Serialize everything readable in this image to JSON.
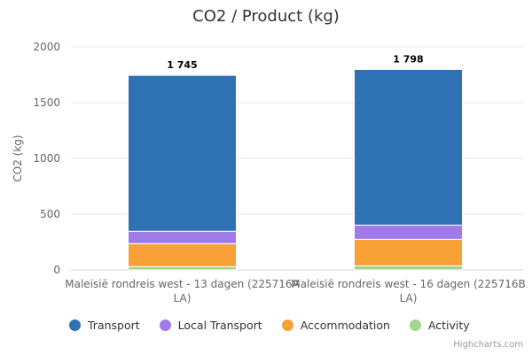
{
  "chart_data": {
    "type": "bar",
    "stacked": true,
    "title": "CO2 / Product (kg)",
    "ylabel": "CO2 (kg)",
    "xlabel": "",
    "ylim": [
      0,
      2000
    ],
    "yticks": [
      "0",
      "500",
      "1000",
      "1500",
      "2000"
    ],
    "categories": [
      "Maleisië rondreis west - 13 dagen (225716A LA)",
      "Maleisië rondreis west - 16 dagen (225716B LA)"
    ],
    "category_lines": [
      [
        "Maleisië rondreis west - 13 dagen (225716A",
        "LA)"
      ],
      [
        "Maleisië rondreis west - 16 dagen (225716B",
        "LA)"
      ]
    ],
    "totals": [
      1745,
      1798
    ],
    "total_labels": [
      "1 745",
      "1 798"
    ],
    "series": [
      {
        "name": "Activity",
        "color": "#a4d38c",
        "values": [
          30,
          37
        ]
      },
      {
        "name": "Accommodation",
        "color": "#f7a035",
        "values": [
          206,
          238
        ]
      },
      {
        "name": "Local Transport",
        "color": "#a07ae8",
        "values": [
          111,
          127
        ]
      },
      {
        "name": "Transport",
        "color": "#2f72b4",
        "values": [
          1398,
          1396
        ]
      }
    ],
    "legend_order": [
      "Transport",
      "Local Transport",
      "Accommodation",
      "Activity"
    ],
    "legend_position": "bottom-left",
    "grid": true
  },
  "credits": "Highcharts.com"
}
